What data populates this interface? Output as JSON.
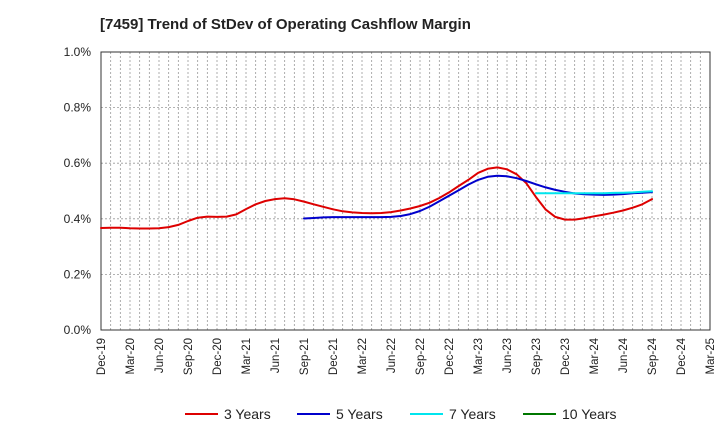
{
  "title": "[7459]  Trend of StDev of Operating Cashflow Margin",
  "colors": {
    "3 Years": "#dd0000",
    "5 Years": "#0000cc",
    "7 Years": "#00e5ee",
    "10 Years": "#007700"
  },
  "chart_data": {
    "type": "line",
    "title": "[7459]  Trend of StDev of Operating Cashflow Margin",
    "xlabel": "",
    "ylabel": "",
    "ylim": [
      0,
      1.0
    ],
    "grid": true,
    "legend": "bottom",
    "x_labels": [
      "Dec-19",
      "Mar-20",
      "Jun-20",
      "Sep-20",
      "Dec-20",
      "Mar-21",
      "Jun-21",
      "Sep-21",
      "Dec-21",
      "Mar-22",
      "Jun-22",
      "Sep-22",
      "Dec-22",
      "Mar-23",
      "Jun-23",
      "Sep-23",
      "Dec-23",
      "Mar-24",
      "Jun-24",
      "Sep-24",
      "Dec-24",
      "Mar-25"
    ],
    "y_ticks": [
      "0.0%",
      "0.2%",
      "0.4%",
      "0.6%",
      "0.8%",
      "1.0%"
    ],
    "months": [
      "2019-12",
      "2020-01",
      "2020-02",
      "2020-03",
      "2020-04",
      "2020-05",
      "2020-06",
      "2020-07",
      "2020-08",
      "2020-09",
      "2020-10",
      "2020-11",
      "2020-12",
      "2021-01",
      "2021-02",
      "2021-03",
      "2021-04",
      "2021-05",
      "2021-06",
      "2021-07",
      "2021-08",
      "2021-09",
      "2021-10",
      "2021-11",
      "2021-12",
      "2022-01",
      "2022-02",
      "2022-03",
      "2022-04",
      "2022-05",
      "2022-06",
      "2022-07",
      "2022-08",
      "2022-09",
      "2022-10",
      "2022-11",
      "2022-12",
      "2023-01",
      "2023-02",
      "2023-03",
      "2023-04",
      "2023-05",
      "2023-06",
      "2023-07",
      "2023-08",
      "2023-09",
      "2023-10",
      "2023-11",
      "2023-12",
      "2024-01",
      "2024-02",
      "2024-03",
      "2024-04",
      "2024-05",
      "2024-06",
      "2024-07",
      "2024-08",
      "2024-09",
      "2024-10",
      "2024-11",
      "2024-12",
      "2025-01",
      "2025-02",
      "2025-03"
    ],
    "series": [
      {
        "name": "3 Years",
        "points": [
          [
            "2019-12",
            0.367
          ],
          [
            "2020-01",
            0.368
          ],
          [
            "2020-02",
            0.368
          ],
          [
            "2020-03",
            0.366
          ],
          [
            "2020-04",
            0.365
          ],
          [
            "2020-05",
            0.365
          ],
          [
            "2020-06",
            0.366
          ],
          [
            "2020-07",
            0.37
          ],
          [
            "2020-08",
            0.378
          ],
          [
            "2020-09",
            0.392
          ],
          [
            "2020-10",
            0.404
          ],
          [
            "2020-11",
            0.408
          ],
          [
            "2020-12",
            0.407
          ],
          [
            "2021-01",
            0.408
          ],
          [
            "2021-02",
            0.416
          ],
          [
            "2021-03",
            0.435
          ],
          [
            "2021-04",
            0.452
          ],
          [
            "2021-05",
            0.464
          ],
          [
            "2021-06",
            0.471
          ],
          [
            "2021-07",
            0.474
          ],
          [
            "2021-08",
            0.47
          ],
          [
            "2021-09",
            0.462
          ],
          [
            "2021-10",
            0.452
          ],
          [
            "2021-11",
            0.443
          ],
          [
            "2021-12",
            0.434
          ],
          [
            "2022-01",
            0.427
          ],
          [
            "2022-02",
            0.423
          ],
          [
            "2022-03",
            0.421
          ],
          [
            "2022-04",
            0.42
          ],
          [
            "2022-05",
            0.421
          ],
          [
            "2022-06",
            0.424
          ],
          [
            "2022-07",
            0.43
          ],
          [
            "2022-08",
            0.437
          ],
          [
            "2022-09",
            0.446
          ],
          [
            "2022-10",
            0.458
          ],
          [
            "2022-11",
            0.475
          ],
          [
            "2022-12",
            0.495
          ],
          [
            "2023-01",
            0.518
          ],
          [
            "2023-02",
            0.54
          ],
          [
            "2023-03",
            0.565
          ],
          [
            "2023-04",
            0.58
          ],
          [
            "2023-05",
            0.585
          ],
          [
            "2023-06",
            0.578
          ],
          [
            "2023-07",
            0.56
          ],
          [
            "2023-08",
            0.528
          ],
          [
            "2023-09",
            0.478
          ],
          [
            "2023-10",
            0.433
          ],
          [
            "2023-11",
            0.407
          ],
          [
            "2023-12",
            0.397
          ],
          [
            "2024-01",
            0.397
          ],
          [
            "2024-02",
            0.402
          ],
          [
            "2024-03",
            0.409
          ],
          [
            "2024-04",
            0.415
          ],
          [
            "2024-05",
            0.422
          ],
          [
            "2024-06",
            0.43
          ],
          [
            "2024-07",
            0.44
          ],
          [
            "2024-08",
            0.452
          ],
          [
            "2024-09",
            0.471
          ]
        ]
      },
      {
        "name": "5 Years",
        "points": [
          [
            "2021-09",
            0.401
          ],
          [
            "2021-10",
            0.403
          ],
          [
            "2021-11",
            0.405
          ],
          [
            "2021-12",
            0.406
          ],
          [
            "2022-01",
            0.406
          ],
          [
            "2022-02",
            0.406
          ],
          [
            "2022-03",
            0.406
          ],
          [
            "2022-04",
            0.406
          ],
          [
            "2022-05",
            0.406
          ],
          [
            "2022-06",
            0.407
          ],
          [
            "2022-07",
            0.41
          ],
          [
            "2022-08",
            0.417
          ],
          [
            "2022-09",
            0.428
          ],
          [
            "2022-10",
            0.444
          ],
          [
            "2022-11",
            0.463
          ],
          [
            "2022-12",
            0.483
          ],
          [
            "2023-01",
            0.503
          ],
          [
            "2023-02",
            0.523
          ],
          [
            "2023-03",
            0.54
          ],
          [
            "2023-04",
            0.551
          ],
          [
            "2023-05",
            0.555
          ],
          [
            "2023-06",
            0.553
          ],
          [
            "2023-07",
            0.546
          ],
          [
            "2023-08",
            0.536
          ],
          [
            "2023-09",
            0.524
          ],
          [
            "2023-10",
            0.513
          ],
          [
            "2023-11",
            0.504
          ],
          [
            "2023-12",
            0.497
          ],
          [
            "2024-01",
            0.491
          ],
          [
            "2024-02",
            0.488
          ],
          [
            "2024-03",
            0.487
          ],
          [
            "2024-04",
            0.486
          ],
          [
            "2024-05",
            0.487
          ],
          [
            "2024-06",
            0.489
          ],
          [
            "2024-07",
            0.492
          ],
          [
            "2024-08",
            0.494
          ],
          [
            "2024-09",
            0.496
          ]
        ]
      },
      {
        "name": "7 Years",
        "points": [
          [
            "2023-09",
            0.492
          ],
          [
            "2023-10",
            0.492
          ],
          [
            "2023-11",
            0.492
          ],
          [
            "2023-12",
            0.492
          ],
          [
            "2024-01",
            0.492
          ],
          [
            "2024-02",
            0.492
          ],
          [
            "2024-03",
            0.492
          ],
          [
            "2024-04",
            0.492
          ],
          [
            "2024-05",
            0.493
          ],
          [
            "2024-06",
            0.494
          ],
          [
            "2024-07",
            0.495
          ],
          [
            "2024-08",
            0.497
          ],
          [
            "2024-09",
            0.499
          ]
        ]
      },
      {
        "name": "10 Years",
        "points": []
      }
    ]
  }
}
